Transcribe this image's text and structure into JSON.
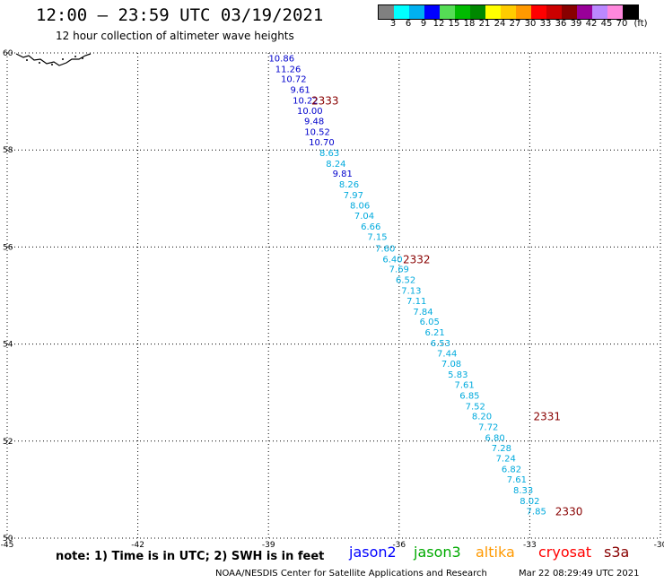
{
  "header": {
    "title": "12:00 – 23:59 UTC 03/19/2021",
    "subtitle": "12 hour collection of altimeter wave heights"
  },
  "colorbar": {
    "colors": [
      "#808080",
      "#00ffff",
      "#00b0f0",
      "#0000ff",
      "#55dd55",
      "#00bb00",
      "#008800",
      "#ffff00",
      "#ffcc00",
      "#ff9900",
      "#ff0000",
      "#cc0000",
      "#880000",
      "#990099",
      "#bb88ff",
      "#ff88dd",
      "#000000"
    ],
    "labels": [
      "3",
      "6",
      "9",
      "12",
      "15",
      "18",
      "21",
      "24",
      "27",
      "30",
      "33",
      "36",
      "39",
      "42",
      "45",
      "70",
      "(ft)"
    ]
  },
  "chart_data": {
    "type": "map",
    "xlim": [
      -45,
      -30
    ],
    "ylim": [
      50,
      60
    ],
    "x_ticks": [
      "-45",
      "-42",
      "-39",
      "-36",
      "-33",
      "-30"
    ],
    "y_ticks": [
      "50",
      "52",
      "54",
      "56",
      "58",
      "60"
    ],
    "grid": true,
    "tracks": [
      {
        "color": "#0000cc",
        "points": [
          {
            "lon": -38.7,
            "lat": 59.9,
            "label": "10.86"
          },
          {
            "lon": -38.55,
            "lat": 59.68,
            "label": "11.26"
          },
          {
            "lon": -38.42,
            "lat": 59.47,
            "label": "10.72"
          },
          {
            "lon": -38.27,
            "lat": 59.25,
            "label": "9.61"
          },
          {
            "lon": -38.15,
            "lat": 59.03,
            "label": "10.22"
          },
          {
            "lon": -38.05,
            "lat": 58.82,
            "label": "10.00"
          },
          {
            "lon": -37.95,
            "lat": 58.6,
            "label": "9.48"
          },
          {
            "lon": -37.88,
            "lat": 58.38,
            "label": "10.52"
          },
          {
            "lon": -37.78,
            "lat": 58.17,
            "label": "10.70"
          },
          {
            "lon": -37.3,
            "lat": 57.52,
            "label": "9.81"
          }
        ]
      },
      {
        "color": "#00aadd",
        "points": [
          {
            "lon": -37.6,
            "lat": 57.95,
            "label": "8.63"
          },
          {
            "lon": -37.45,
            "lat": 57.73,
            "label": "8.24"
          },
          {
            "lon": -37.15,
            "lat": 57.3,
            "label": "8.26"
          },
          {
            "lon": -37.05,
            "lat": 57.08,
            "label": "7.97"
          },
          {
            "lon": -36.9,
            "lat": 56.87,
            "label": "8.06"
          },
          {
            "lon": -36.8,
            "lat": 56.65,
            "label": "7.04"
          },
          {
            "lon": -36.65,
            "lat": 56.43,
            "label": "6.66"
          },
          {
            "lon": -36.5,
            "lat": 56.22,
            "label": "7.15"
          },
          {
            "lon": -36.32,
            "lat": 55.98,
            "label": "7.60"
          },
          {
            "lon": -36.15,
            "lat": 55.76,
            "label": "6.40"
          },
          {
            "lon": -36.0,
            "lat": 55.55,
            "label": "7.69"
          },
          {
            "lon": -35.85,
            "lat": 55.33,
            "label": "6.52"
          },
          {
            "lon": -35.72,
            "lat": 55.11,
            "label": "7.13"
          },
          {
            "lon": -35.6,
            "lat": 54.9,
            "label": "7.11"
          },
          {
            "lon": -35.45,
            "lat": 54.68,
            "label": "7.84"
          },
          {
            "lon": -35.3,
            "lat": 54.47,
            "label": "6.05"
          },
          {
            "lon": -35.18,
            "lat": 54.25,
            "label": "6.21"
          },
          {
            "lon": -35.05,
            "lat": 54.03,
            "label": "6.53"
          },
          {
            "lon": -34.9,
            "lat": 53.82,
            "label": "7.44"
          },
          {
            "lon": -34.8,
            "lat": 53.6,
            "label": "7.08"
          },
          {
            "lon": -34.65,
            "lat": 53.38,
            "label": "5.83"
          },
          {
            "lon": -34.5,
            "lat": 53.17,
            "label": "7.61"
          },
          {
            "lon": -34.38,
            "lat": 52.95,
            "label": "6.85"
          },
          {
            "lon": -34.25,
            "lat": 52.73,
            "label": "7.52"
          },
          {
            "lon": -34.1,
            "lat": 52.52,
            "label": "8.20"
          },
          {
            "lon": -33.95,
            "lat": 52.3,
            "label": "7.72"
          },
          {
            "lon": -33.8,
            "lat": 52.08,
            "label": "6.80"
          },
          {
            "lon": -33.65,
            "lat": 51.87,
            "label": "7.28"
          },
          {
            "lon": -33.55,
            "lat": 51.65,
            "label": "7.24"
          },
          {
            "lon": -33.42,
            "lat": 51.43,
            "label": "6.82"
          },
          {
            "lon": -33.3,
            "lat": 51.22,
            "label": "7.61"
          },
          {
            "lon": -33.15,
            "lat": 51.0,
            "label": "8.33"
          },
          {
            "lon": -33.0,
            "lat": 50.78,
            "label": "8.02"
          },
          {
            "lon": -32.85,
            "lat": 50.56,
            "label": "7.85"
          }
        ]
      }
    ],
    "time_labels": [
      {
        "lon": -37.7,
        "lat": 59.03,
        "label": "2333"
      },
      {
        "lon": -35.6,
        "lat": 55.76,
        "label": "2332"
      },
      {
        "lon": -32.6,
        "lat": 52.52,
        "label": "2331"
      },
      {
        "lon": -32.1,
        "lat": 50.56,
        "label": "2330"
      }
    ],
    "time_label_color": "#880000"
  },
  "footer": {
    "note": "note:  1) Time is in UTC;  2) SWH is in feet",
    "satellites": [
      {
        "name": "jason2",
        "color": "#0000ff"
      },
      {
        "name": "jason3",
        "color": "#00aa00"
      },
      {
        "name": "altika",
        "color": "#ff9900"
      },
      {
        "name": "cryosat",
        "color": "#ff0000"
      },
      {
        "name": "s3a",
        "color": "#880000"
      }
    ],
    "credit": "NOAA/NESDIS Center for Satellite Applications and Research",
    "timestamp": "Mar 22 08:29:49 UTC 2021"
  }
}
